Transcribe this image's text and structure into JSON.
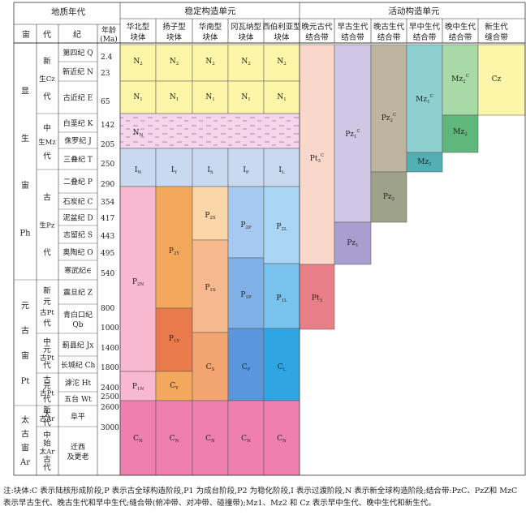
{
  "headers": {
    "geo_era": "地质年代",
    "stable_units": "稳定构造单元",
    "active_units": "活动构造单元",
    "col_eon": "宙",
    "col_era": "代",
    "col_period": "纪",
    "col_age_line1": "年龄",
    "col_age_line2": "(Ma)"
  },
  "blocks": [
    {
      "line1": "华北型",
      "line2": "块体"
    },
    {
      "line1": "扬子型",
      "line2": "块体"
    },
    {
      "line1": "华南型",
      "line2": "块体"
    },
    {
      "line1": "冈瓦纳型",
      "line2": "块体"
    },
    {
      "line1": "西伯利亚型",
      "line2": "块体"
    }
  ],
  "belts": [
    {
      "line1": "晚元古代",
      "line2": "结合带"
    },
    {
      "line1": "早古生代",
      "line2": "结合带"
    },
    {
      "line1": "晚古生代",
      "line2": "结合带"
    },
    {
      "line1": "早中生代",
      "line2": "结合带"
    },
    {
      "line1": "晚中生代",
      "line2": "结合带"
    },
    {
      "line1": "新生代",
      "line2": "缝合带"
    }
  ],
  "eons": [
    {
      "chars": [
        "显",
        "生",
        "宙",
        "Ph"
      ]
    },
    {
      "chars": [
        "元",
        "古",
        "宙",
        "Pt"
      ]
    },
    {
      "chars": [
        "太",
        "古",
        "宙",
        "Ar"
      ]
    }
  ],
  "eras": [
    {
      "chars": [
        "新",
        "生Cz",
        "代"
      ]
    },
    {
      "chars": [
        "中",
        "生Mz",
        "代"
      ]
    },
    {
      "chars": [
        "古",
        "生Pz",
        "代"
      ]
    },
    {
      "chars": [
        "新",
        "元",
        "古Pt",
        "代"
      ]
    },
    {
      "chars": [
        "中",
        "元",
        "古Pt",
        "代"
      ]
    },
    {
      "chars": [
        "古",
        "元",
        "古Pt",
        "代"
      ]
    },
    {
      "chars": [
        "新",
        "太",
        "古Ar",
        "代"
      ]
    },
    {
      "chars": [
        "中",
        "始",
        "太Ar",
        "古",
        "代"
      ]
    }
  ],
  "periods": [
    {
      "label": "第四纪 Q"
    },
    {
      "label": "新近纪 N"
    },
    {
      "label": "古近纪 E"
    },
    {
      "label": "白垩纪 K"
    },
    {
      "label": "侏罗纪 J"
    },
    {
      "label": "三叠纪 T"
    },
    {
      "label": "二叠纪 P"
    },
    {
      "label": "石炭纪 C"
    },
    {
      "label": "泥盆纪 D"
    },
    {
      "label": "志留纪 S"
    },
    {
      "label": "奥陶纪 O"
    },
    {
      "label": "寒武纪∈"
    },
    {
      "label": "震旦纪 Z"
    },
    {
      "label": "青白口纪",
      "label2": "Qb"
    },
    {
      "label": "蓟县纪 Jx"
    },
    {
      "label": "长城纪 Ch"
    },
    {
      "label": "滹沱 Ht"
    },
    {
      "label": "五台 Wt"
    },
    {
      "label": "阜平"
    },
    {
      "label": "迁西",
      "label2": "及更老"
    }
  ],
  "ages": [
    "2.4",
    "23",
    "65",
    "142",
    "205",
    "250",
    "290",
    "354",
    "417",
    "443",
    "495",
    "540",
    "800",
    "1000",
    "1400",
    "1800",
    "2400",
    "2500",
    "2600",
    "3000"
  ],
  "cells": [
    {
      "label": "N",
      "sub": "2"
    },
    {
      "label": "N",
      "sub": "2"
    },
    {
      "label": "N",
      "sub": "2"
    },
    {
      "label": "N",
      "sub": "2"
    },
    {
      "label": "N",
      "sub": "2"
    },
    {
      "label": "N",
      "sub": "1"
    },
    {
      "label": "N",
      "sub": "1"
    },
    {
      "label": "N",
      "sub": "1"
    },
    {
      "label": "N",
      "sub": "1"
    },
    {
      "label": "N",
      "sub": "1"
    },
    {
      "label": "N",
      "sub": "N"
    },
    {
      "label": "I",
      "sub": "N"
    },
    {
      "label": "I",
      "sub": "Y"
    },
    {
      "label": "I",
      "sub": "S"
    },
    {
      "label": "I",
      "sub": "P"
    },
    {
      "label": "I",
      "sub": "L"
    },
    {
      "label": "P",
      "sub": "2N"
    },
    {
      "label": "P",
      "sub": "2Y"
    },
    {
      "label": "P",
      "sub": "2S"
    },
    {
      "label": "P",
      "sub": "2P"
    },
    {
      "label": "P",
      "sub": "2L"
    },
    {
      "label": "P",
      "sub": "1S"
    },
    {
      "label": "P",
      "sub": "1P"
    },
    {
      "label": "P",
      "sub": "1L"
    },
    {
      "label": "P",
      "sub": "1Y"
    },
    {
      "label": "C",
      "sub": "S"
    },
    {
      "label": "C",
      "sub": "P"
    },
    {
      "label": "C",
      "sub": "L"
    },
    {
      "label": "P",
      "sub": "1N"
    },
    {
      "label": "C",
      "sub": "Y"
    },
    {
      "label": "C",
      "sub": "N"
    },
    {
      "label": "C",
      "sub": "N"
    },
    {
      "label": "C",
      "sub": "N"
    },
    {
      "label": "C",
      "sub": "N"
    },
    {
      "label": "C",
      "sub": "N"
    },
    {
      "label": "Pt",
      "sub": "3",
      "sup": "C"
    },
    {
      "label": "Pt",
      "sub": "3"
    },
    {
      "label": "Pz",
      "sub": "1",
      "sup": "C"
    },
    {
      "label": "Pz",
      "sub": "1"
    },
    {
      "label": "Pz",
      "sub": "2",
      "sup": "C"
    },
    {
      "label": "Pz",
      "sub": "2"
    },
    {
      "label": "Mz",
      "sub": "1",
      "sup": "C"
    },
    {
      "label": "Mz",
      "sub": "1"
    },
    {
      "label": "Mz",
      "sub": "2",
      "sup": "C"
    },
    {
      "label": "Mz",
      "sub": "2"
    },
    {
      "label": "Cz"
    }
  ],
  "colors": {
    "cz_yellow": "#FDF6A8",
    "mz_pink_dash": "#F6D5EA",
    "transition_blue": "#C9D9F0",
    "north_p2": "#F7B8D0",
    "yz_p2": "#F4A85C",
    "yz_p1": "#E87A4B",
    "sc_p2": "#FBD6A8",
    "sc_p1": "#F6B98E",
    "sc_c": "#F2A571",
    "gw_p2": "#A5C9F1",
    "gw_p1": "#7FB0E6",
    "gw_c": "#5A96DB",
    "sib_p2": "#A9D6F4",
    "sib_p1": "#78C2EE",
    "sib_c": "#2FA6E3",
    "archean": "#EE7FAE",
    "belt_pt3c": "#FAD7CB",
    "belt_pt3": "#E97F86",
    "belt_pz1c": "#CFC7E3",
    "belt_pz1": "#A89ECF",
    "belt_pz2c": "#BDB5A0",
    "belt_pz2": "#9FA28A",
    "belt_mz1c": "#8ECFD0",
    "belt_mz1": "#52B0B5",
    "belt_mz2c": "#A9D9A7",
    "belt_mz2": "#5FB77C",
    "belt_cz": "#FDF6A8"
  },
  "note": "注:块体:C 表示陆核形成阶段,P 表示古全球构造阶段,P1 为成台阶段,P2 为稳化阶段,I 表示过渡阶段,N 表示新全球构造阶段;结合带:PzC、PzZ和 MzC 表示早古生代、晚古生代和早中生代;缝合带(俯冲带、对冲带、碰撞带);Mz1、Mz2 和 Cz 表示早中生代、晚中生代和新生代。"
}
